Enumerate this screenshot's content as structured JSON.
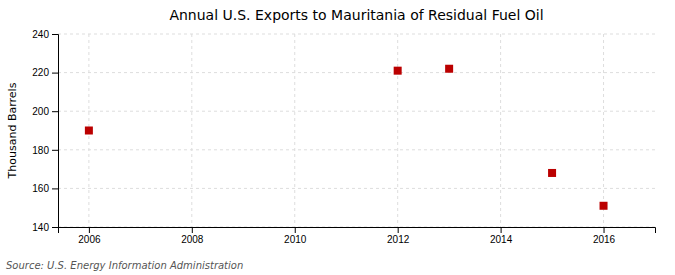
{
  "chart_data": {
    "type": "scatter",
    "title": "Annual U.S. Exports to Mauritania of Residual Fuel Oil",
    "ylabel": "Thousand Barrels",
    "source": "Source: U.S. Energy Information Administration",
    "x": [
      2006,
      2012,
      2013,
      2015,
      2016
    ],
    "values": [
      190,
      221,
      222,
      168,
      151
    ],
    "color": "#bb0000",
    "marker": "square",
    "xlim": [
      2005.4,
      2017.0
    ],
    "ylim": [
      140,
      240
    ],
    "xticks": [
      2006,
      2008,
      2010,
      2012,
      2014,
      2016
    ],
    "yticks": [
      140,
      160,
      180,
      200,
      220,
      240
    ],
    "grid": true
  }
}
